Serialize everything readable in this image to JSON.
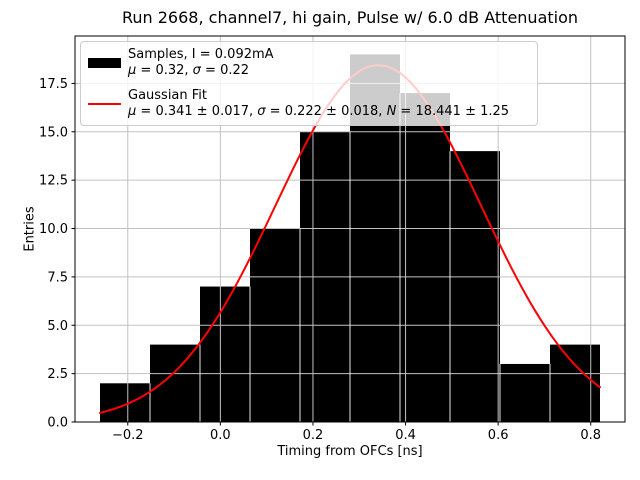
{
  "chart_data": {
    "type": "bar",
    "subtype": "histogram",
    "title": "Run 2668, channel7, hi gain, Pulse w/ 6.0 dB Attenuation",
    "xlabel": "Timing from OFCs [ns]",
    "ylabel": "Entries",
    "bin_edges": [
      -0.26,
      -0.152,
      -0.044,
      0.064,
      0.172,
      0.28,
      0.388,
      0.496,
      0.604,
      0.712,
      0.82
    ],
    "counts": [
      2,
      4,
      7,
      10,
      15,
      19,
      17,
      14,
      3,
      4
    ],
    "bar_color": "#000000",
    "bin_seam_color": "#ffffff",
    "xlim": [
      -0.314,
      0.874
    ],
    "ylim": [
      0,
      19.95
    ],
    "xticks": {
      "values": [
        -0.2,
        0.0,
        0.2,
        0.4,
        0.6,
        0.8
      ],
      "labels": [
        "−0.2",
        "0.0",
        "0.2",
        "0.4",
        "0.6",
        "0.8"
      ]
    },
    "yticks": {
      "values": [
        0.0,
        2.5,
        5.0,
        7.5,
        10.0,
        12.5,
        15.0,
        17.5
      ],
      "labels": [
        "0.0",
        "2.5",
        "5.0",
        "7.5",
        "10.0",
        "12.5",
        "15.0",
        "17.5"
      ]
    },
    "grid": true,
    "grid_color": "#c2c2c2",
    "fit": {
      "type": "gaussian",
      "mu": 0.341,
      "sigma": 0.222,
      "amplitude": 18.441,
      "color": "#ff0000",
      "x_range": [
        -0.26,
        0.82
      ]
    },
    "legend_position": "upper left"
  },
  "legend": {
    "samples_label": "Samples, I = 0.092mA",
    "samples_stats": [
      {
        "t": "μ",
        "i": 1
      },
      {
        "t": " = 0.32, "
      },
      {
        "t": "σ",
        "i": 1
      },
      {
        "t": " = 0.22"
      }
    ],
    "fit_label": "Gaussian Fit",
    "fit_stats": [
      {
        "t": "μ",
        "i": 1
      },
      {
        "t": " = 0.341 ± 0.017, "
      },
      {
        "t": "σ",
        "i": 1
      },
      {
        "t": " = 0.222 ± 0.018, "
      },
      {
        "t": "N",
        "i": 1
      },
      {
        "t": " = 18.441 ± 1.25"
      }
    ]
  }
}
